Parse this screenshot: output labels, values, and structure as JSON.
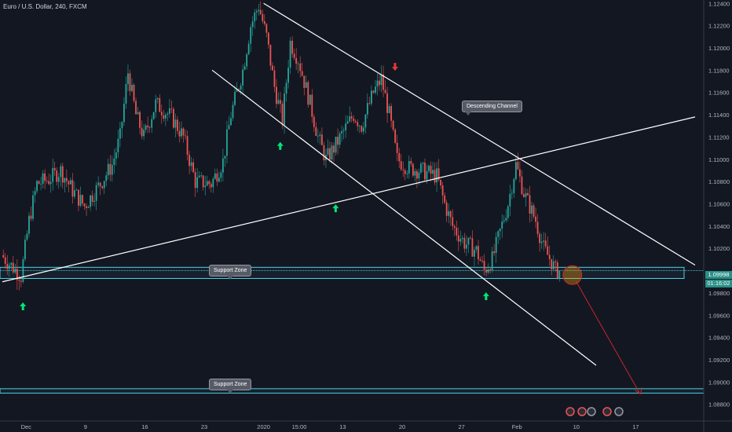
{
  "header": {
    "symbol_title": "Euro / U.S. Dollar, 240, FXCM"
  },
  "price_tags": {
    "last_price": "1.09998",
    "countdown": "01:16:02"
  },
  "annotations": {
    "descending_channel": "Descending Channel",
    "support_zone_upper": "Support Zone",
    "support_zone_lower": "Support Zone"
  },
  "colors": {
    "background": "#131722",
    "bullish": "#26a69a",
    "bearish": "#ef5350",
    "lines": "#ffffff",
    "support": "#4dd0e1",
    "up_arrow": "#00e676",
    "down_arrow": "#e53935",
    "price_tag": "#2a8f88"
  },
  "chart_data": {
    "type": "candlestick",
    "title": "Euro / U.S. Dollar, 240, FXCM",
    "y_axis": {
      "ylim": [
        1.0865,
        1.1243
      ],
      "ticks": [
        1.124,
        1.122,
        1.12,
        1.118,
        1.116,
        1.114,
        1.112,
        1.11,
        1.108,
        1.106,
        1.104,
        1.102,
        1.098,
        1.096,
        1.094,
        1.092,
        1.09,
        1.088
      ],
      "tick_labels": [
        "1.12400",
        "1.12200",
        "1.12000",
        "1.11800",
        "1.11600",
        "1.11400",
        "1.11200",
        "1.11000",
        "1.10800",
        "1.10600",
        "1.10400",
        "1.10200",
        "1.09800",
        "1.09600",
        "1.09400",
        "1.09200",
        "1.09000",
        "1.08800"
      ]
    },
    "x_axis": {
      "tick_labels": [
        "Dec",
        "9",
        "16",
        "23",
        "2020",
        "15:00",
        "13",
        "20",
        "27",
        "Feb",
        "10",
        "17"
      ],
      "bar_index": [
        6,
        21,
        36,
        51,
        66,
        75,
        86,
        101,
        116,
        130,
        145,
        160
      ]
    },
    "price_path": [
      [
        0,
        1.1014
      ],
      [
        5,
        1.0995
      ],
      [
        7,
        1.1045
      ],
      [
        9,
        1.1078
      ],
      [
        12,
        1.1082
      ],
      [
        15,
        1.109
      ],
      [
        18,
        1.1072
      ],
      [
        21,
        1.1058
      ],
      [
        25,
        1.1078
      ],
      [
        28,
        1.1095
      ],
      [
        30,
        1.112
      ],
      [
        32,
        1.1178
      ],
      [
        34,
        1.114
      ],
      [
        36,
        1.112
      ],
      [
        39,
        1.115
      ],
      [
        43,
        1.1138
      ],
      [
        46,
        1.112
      ],
      [
        49,
        1.108
      ],
      [
        53,
        1.1078
      ],
      [
        56,
        1.1098
      ],
      [
        58,
        1.114
      ],
      [
        61,
        1.118
      ],
      [
        63,
        1.122
      ],
      [
        65,
        1.1238
      ],
      [
        67,
        1.121
      ],
      [
        69,
        1.1165
      ],
      [
        71,
        1.1135
      ],
      [
        73,
        1.1205
      ],
      [
        75,
        1.119
      ],
      [
        78,
        1.115
      ],
      [
        80,
        1.112
      ],
      [
        82,
        1.11
      ],
      [
        84,
        1.111
      ],
      [
        86,
        1.1122
      ],
      [
        89,
        1.114
      ],
      [
        91,
        1.113
      ],
      [
        94,
        1.116
      ],
      [
        96,
        1.1172
      ],
      [
        98,
        1.114
      ],
      [
        100,
        1.11
      ],
      [
        103,
        1.1092
      ],
      [
        106,
        1.109
      ],
      [
        110,
        1.1085
      ],
      [
        112,
        1.106
      ],
      [
        114,
        1.104
      ],
      [
        117,
        1.1025
      ],
      [
        120,
        1.1018
      ],
      [
        122,
        1.1
      ],
      [
        124,
        1.101
      ],
      [
        126,
        1.1035
      ],
      [
        128,
        1.106
      ],
      [
        130,
        1.1095
      ],
      [
        132,
        1.107
      ],
      [
        135,
        1.1045
      ],
      [
        137,
        1.102
      ],
      [
        139,
        1.1008
      ],
      [
        140,
        1.1
      ]
    ],
    "trendlines": [
      {
        "name": "channel-upper",
        "from": [
          66,
          1.124
        ],
        "to": [
          175,
          1.1005
        ]
      },
      {
        "name": "channel-lower",
        "from": [
          53,
          1.118
        ],
        "to": [
          150,
          1.0915
        ]
      },
      {
        "name": "rising-line",
        "from": [
          0,
          1.099
        ],
        "to": [
          175,
          1.1138
        ]
      },
      {
        "name": "projection",
        "from": [
          145,
          1.099
        ],
        "to": [
          161,
          1.089
        ]
      }
    ],
    "support_zones": [
      {
        "top": 1.1003,
        "bottom": 1.0993
      },
      {
        "top": 1.0894,
        "bottom": 1.089
      }
    ],
    "markers": {
      "up_arrows": [
        [
          5,
          1.0968
        ],
        [
          70,
          1.1112
        ],
        [
          84,
          1.1056
        ],
        [
          122,
          1.0977
        ]
      ],
      "down_arrows": [
        [
          99,
          1.1183
        ]
      ],
      "target_circle": [
        144,
        1.0996
      ]
    }
  }
}
